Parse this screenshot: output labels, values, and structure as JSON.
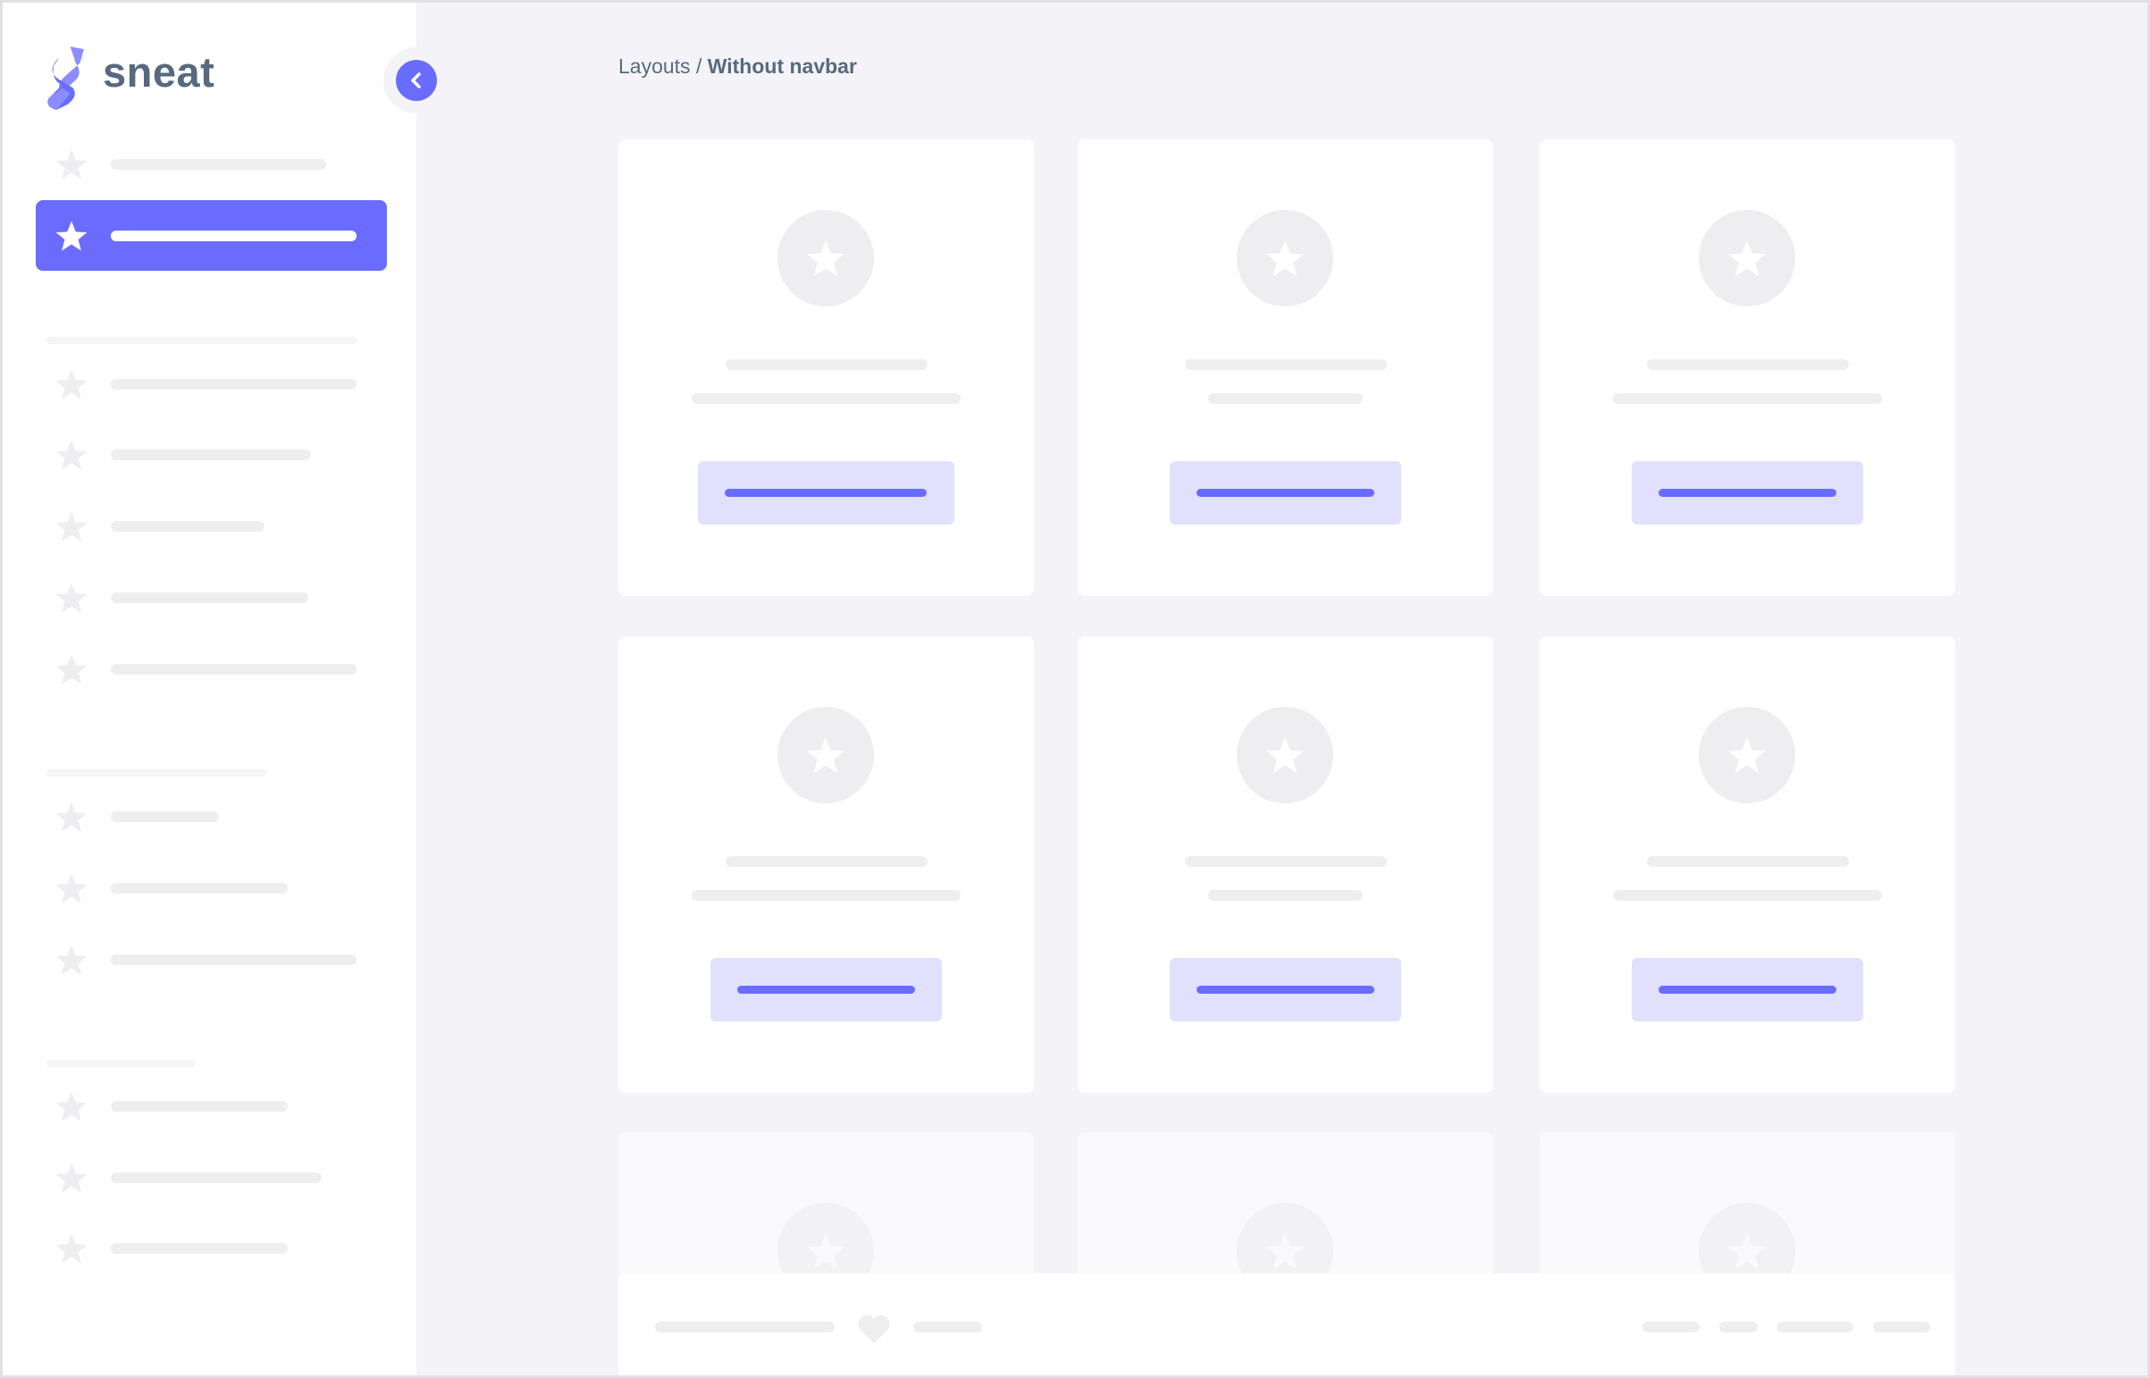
{
  "brand": {
    "name": "sneat",
    "accent": "#696cff",
    "text_color": "#566a7f"
  },
  "breadcrumb": {
    "parent": "Layouts",
    "separator": " / ",
    "current": "Without navbar"
  },
  "sidebar": {
    "collapse_icon": "chevron-left-icon",
    "item_icon": "star-icon",
    "active_index": 1
  },
  "footer": {
    "icon": "heart-icon"
  }
}
